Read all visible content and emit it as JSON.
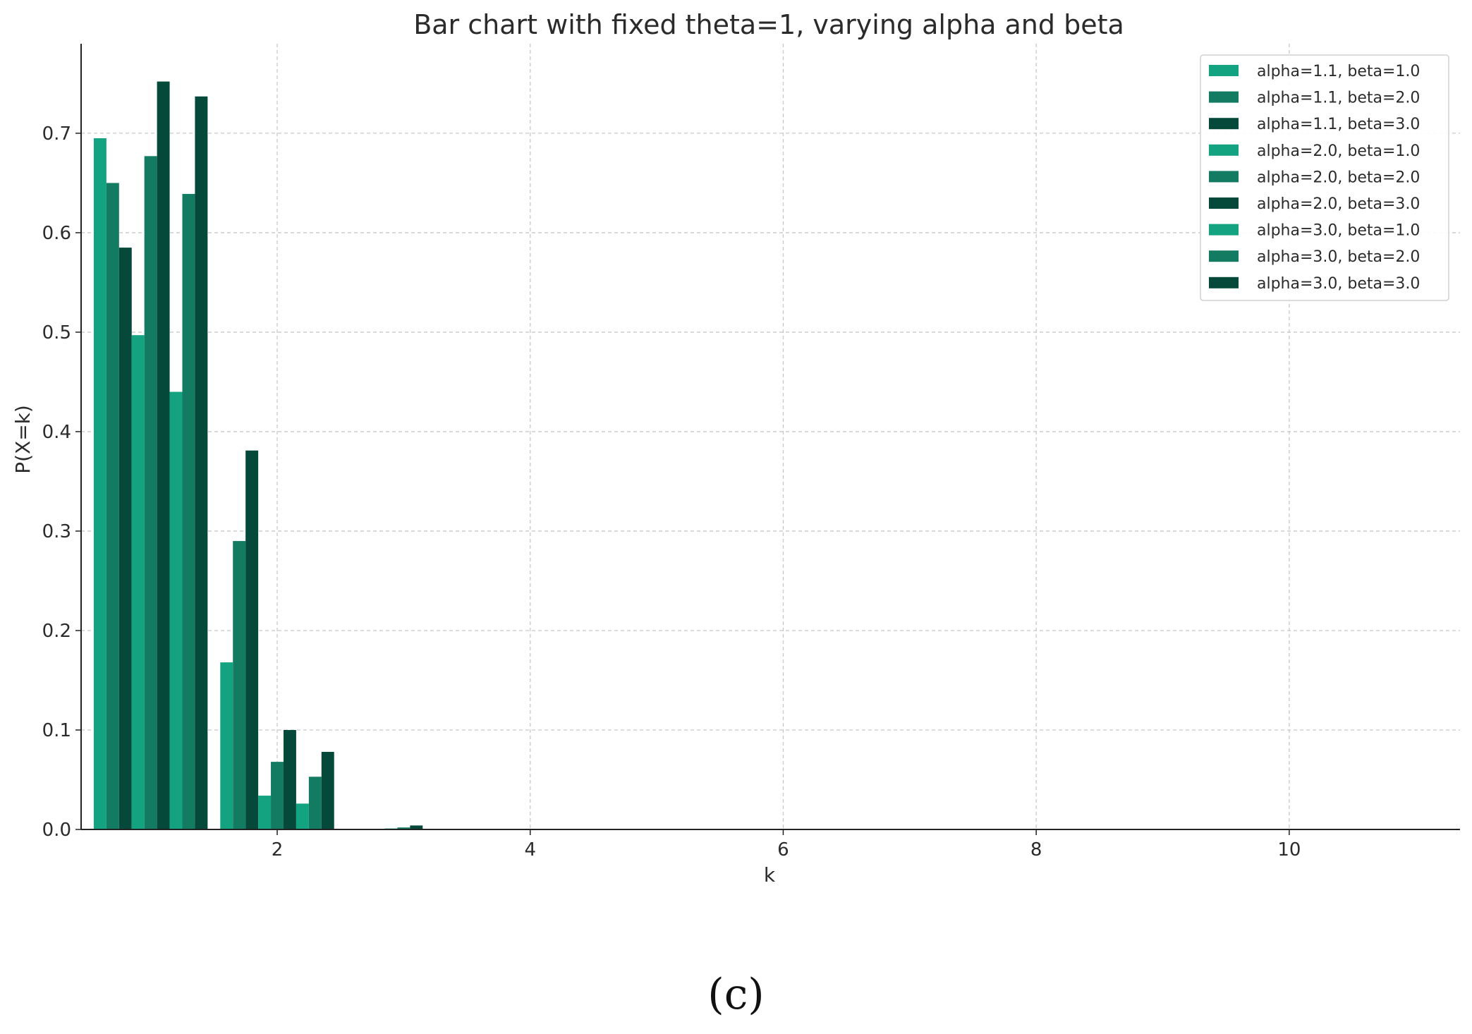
{
  "figure": {
    "caption": "(c)"
  },
  "colors": {
    "light": "#13a381",
    "mid": "#137b62",
    "dark": "#04493a",
    "axis": "#222222",
    "grid": "#c8c8c8"
  },
  "chart_data": {
    "type": "bar",
    "title": "Bar chart with fixed theta=1, varying alpha and beta",
    "xlabel": "k",
    "ylabel": "P(X=k)",
    "xlim": [
      0.45,
      11.35
    ],
    "ylim": [
      0,
      0.79
    ],
    "xticks": [
      2,
      4,
      6,
      8,
      10
    ],
    "yticks": [
      0.0,
      0.1,
      0.2,
      0.3,
      0.4,
      0.5,
      0.6,
      0.7
    ],
    "ytick_labels": [
      "0.0",
      "0.1",
      "0.2",
      "0.3",
      "0.4",
      "0.5",
      "0.6",
      "0.7"
    ],
    "x": [
      1,
      2,
      3,
      4,
      5,
      6,
      7,
      8,
      9,
      10,
      11
    ],
    "bar_width": 0.1,
    "grid": true,
    "legend_position": "top-right",
    "series": [
      {
        "name": "alpha=1.1, beta=1.0",
        "color": "#13a381",
        "values": [
          0.695,
          0.168,
          0.0,
          0,
          0,
          0,
          0,
          0,
          0,
          0,
          0
        ]
      },
      {
        "name": "alpha=1.1, beta=2.0",
        "color": "#137b62",
        "values": [
          0.65,
          0.29,
          0.0,
          0,
          0,
          0,
          0,
          0,
          0,
          0,
          0
        ]
      },
      {
        "name": "alpha=1.1, beta=3.0",
        "color": "#04493a",
        "values": [
          0.585,
          0.381,
          0.0,
          0,
          0,
          0,
          0,
          0,
          0,
          0,
          0
        ]
      },
      {
        "name": "alpha=2.0, beta=1.0",
        "color": "#13a381",
        "values": [
          0.497,
          0.034,
          0.001,
          0,
          0,
          0,
          0,
          0,
          0,
          0,
          0
        ]
      },
      {
        "name": "alpha=2.0, beta=2.0",
        "color": "#137b62",
        "values": [
          0.677,
          0.068,
          0.002,
          0,
          0,
          0,
          0,
          0,
          0,
          0,
          0
        ]
      },
      {
        "name": "alpha=2.0, beta=3.0",
        "color": "#04493a",
        "values": [
          0.752,
          0.1,
          0.004,
          0,
          0,
          0,
          0,
          0,
          0,
          0,
          0
        ]
      },
      {
        "name": "alpha=3.0, beta=1.0",
        "color": "#13a381",
        "values": [
          0.44,
          0.026,
          0.0,
          0,
          0,
          0,
          0,
          0,
          0,
          0,
          0
        ]
      },
      {
        "name": "alpha=3.0, beta=2.0",
        "color": "#137b62",
        "values": [
          0.639,
          0.053,
          0.0,
          0,
          0,
          0,
          0,
          0,
          0,
          0,
          0
        ]
      },
      {
        "name": "alpha=3.0, beta=3.0",
        "color": "#04493a",
        "values": [
          0.737,
          0.078,
          0.0,
          0,
          0,
          0,
          0,
          0,
          0,
          0,
          0
        ]
      }
    ]
  }
}
